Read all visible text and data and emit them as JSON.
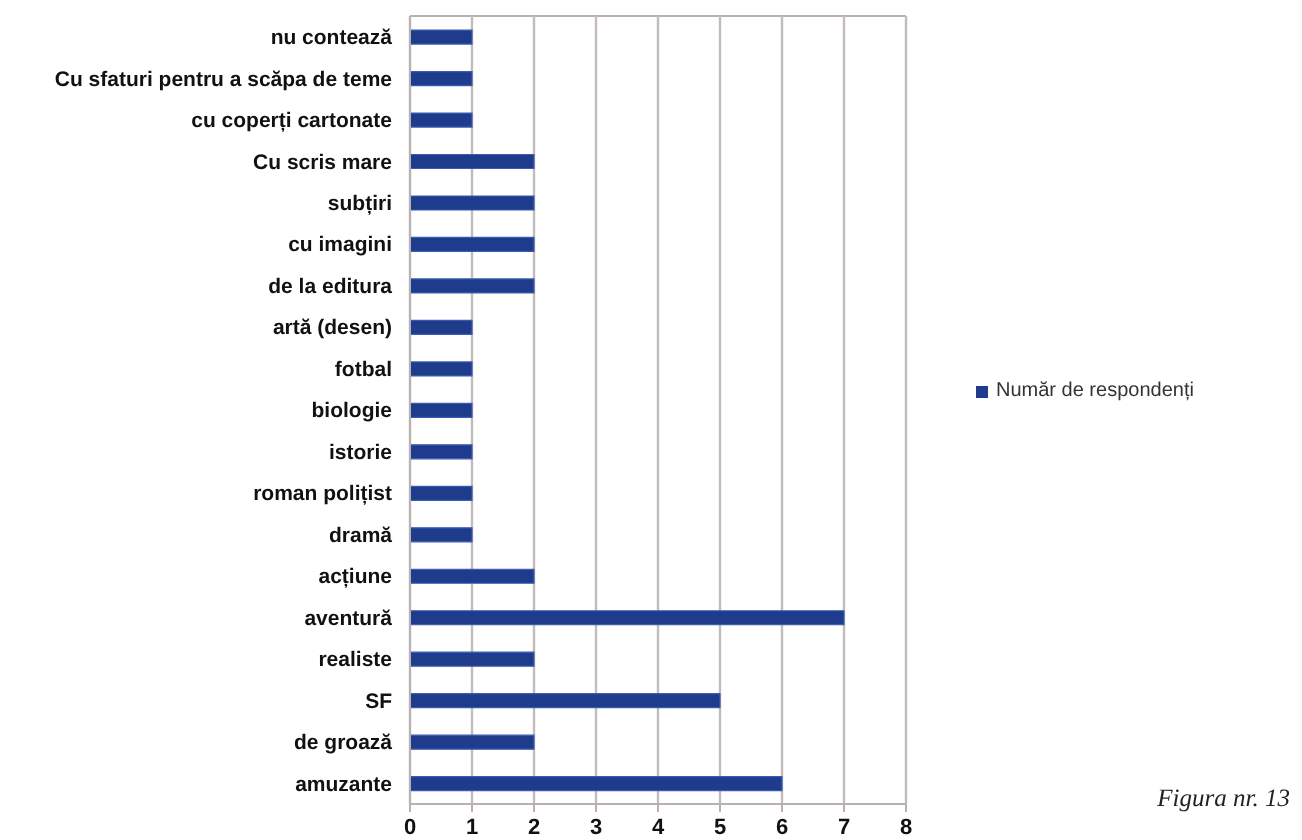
{
  "chart_data": {
    "type": "bar",
    "orientation": "horizontal",
    "categories": [
      "nu contează",
      "Cu sfaturi pentru a scăpa de teme",
      "cu coperți cartonate",
      "Cu scris mare",
      "subțiri",
      "cu imagini",
      "de la editura",
      "artă (desen)",
      "fotbal",
      "biologie",
      "istorie",
      "roman polițist",
      "dramă",
      "acțiune",
      "aventură",
      "realiste",
      "SF",
      "de groază",
      "amuzante"
    ],
    "series": [
      {
        "name": "Număr de respondenți",
        "color": "#1f3c8c",
        "values": [
          1,
          1,
          1,
          2,
          2,
          2,
          2,
          1,
          1,
          1,
          1,
          1,
          1,
          2,
          7,
          2,
          5,
          2,
          6
        ]
      }
    ],
    "xlim": [
      0,
      8
    ],
    "xticks": [
      0,
      1,
      2,
      3,
      4,
      5,
      6,
      7,
      8
    ],
    "grid": "x",
    "legend": "right",
    "annotations": [
      "Figura nr. 13"
    ]
  }
}
